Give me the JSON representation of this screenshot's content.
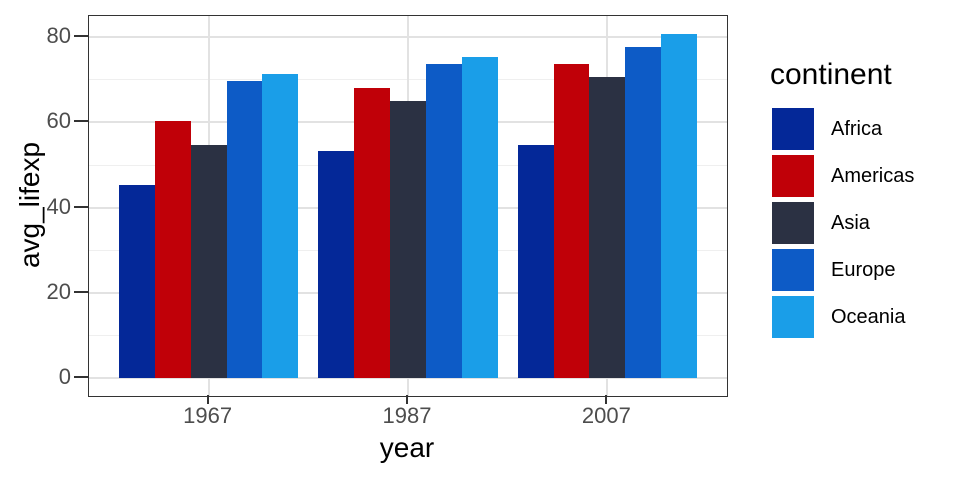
{
  "chart_data": {
    "type": "bar",
    "title": "",
    "xlabel": "year",
    "ylabel": "avg_lifexp",
    "legend_title": "continent",
    "legend_position": "right",
    "grid": true,
    "categories": [
      "1967",
      "1987",
      "2007"
    ],
    "series": [
      {
        "name": "Africa",
        "color": "#042898",
        "values": [
          45.3,
          53.3,
          54.8
        ]
      },
      {
        "name": "Americas",
        "color": "#C00008",
        "values": [
          60.4,
          68.1,
          73.6
        ]
      },
      {
        "name": "Asia",
        "color": "#2B3143",
        "values": [
          54.7,
          64.9,
          70.7
        ]
      },
      {
        "name": "Europe",
        "color": "#0D5BC6",
        "values": [
          69.7,
          73.6,
          77.6
        ]
      },
      {
        "name": "Oceania",
        "color": "#1A9EE8",
        "values": [
          71.3,
          75.3,
          80.7
        ]
      }
    ],
    "y_ticks": [
      0,
      20,
      40,
      60,
      80
    ],
    "y_minor_ticks": [
      10,
      30,
      50,
      70
    ],
    "ylim": [
      -4.1,
      84.9
    ],
    "panel_border_color": "#333333",
    "tick_color": "#333333",
    "tick_label_color": "#4d4d4d",
    "grid_major_color": "#e2e2e2",
    "grid_minor_color": "#efefef"
  }
}
